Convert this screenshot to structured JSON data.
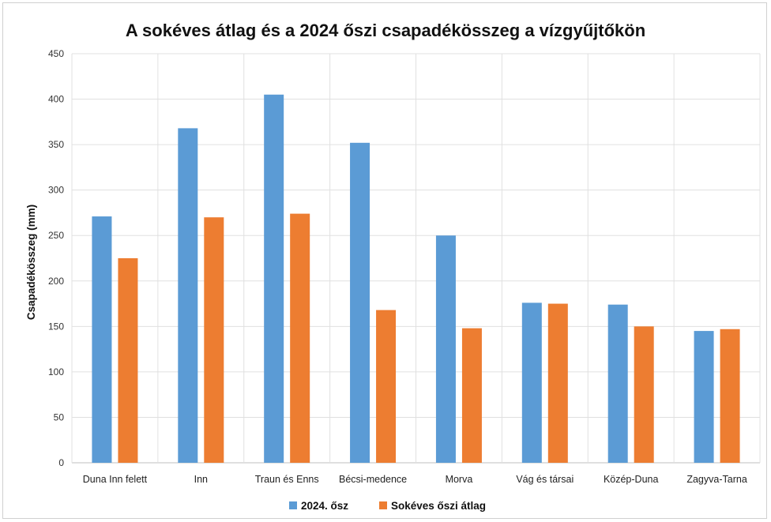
{
  "chart_data": {
    "type": "bar",
    "title": "A sokéves átlag és a 2024 őszi csapadékösszeg a vízgyűjtőkön",
    "ylabel": "Csapadékösszeg (mm)",
    "xlabel": "",
    "ylim": [
      0,
      450
    ],
    "yticks": [
      0,
      50,
      100,
      150,
      200,
      250,
      300,
      350,
      400,
      450
    ],
    "grid": true,
    "legend_position": "bottom",
    "categories": [
      "Duna Inn felett",
      "Inn",
      "Traun és Enns",
      "Bécsi-medence",
      "Morva",
      "Vág és társai",
      "Közép-Duna",
      "Zagyva-Tarna"
    ],
    "series": [
      {
        "name": "2024. ősz",
        "color": "#5b9bd5",
        "values": [
          271,
          368,
          405,
          352,
          250,
          176,
          174,
          145
        ]
      },
      {
        "name": "Sokéves őszi átlag",
        "color": "#ed7d31",
        "values": [
          225,
          270,
          274,
          168,
          148,
          175,
          150,
          147
        ]
      }
    ]
  }
}
